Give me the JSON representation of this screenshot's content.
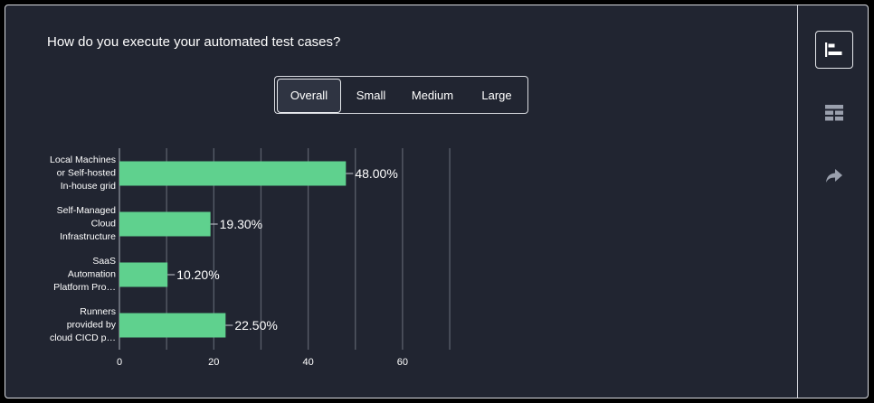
{
  "question": "How do you execute your automated test cases?",
  "filters": {
    "options": [
      "Overall",
      "Small",
      "Medium",
      "Large"
    ],
    "selected": "Overall"
  },
  "side_toolbar": {
    "buttons": [
      {
        "icon": "bar-chart-icon",
        "active": true
      },
      {
        "icon": "table-icon",
        "active": false
      },
      {
        "icon": "share-icon",
        "active": false
      }
    ]
  },
  "colors": {
    "bar": "#5fd18e",
    "panel_bg": "#212531",
    "grid": "#5a5f6b",
    "text": "#ffffff"
  },
  "chart_data": {
    "type": "bar",
    "orientation": "horizontal",
    "title": "How do you execute your automated test cases?",
    "categories": [
      [
        "Local Machines",
        "or Self-hosted",
        "In-house grid"
      ],
      [
        "Self-Managed",
        "Cloud",
        "Infrastructure"
      ],
      [
        "SaaS",
        "Automation",
        "Platform Pro…"
      ],
      [
        "Runners",
        "provided by",
        "cloud CICD p…"
      ]
    ],
    "values": [
      48.0,
      19.3,
      10.2,
      22.5
    ],
    "value_labels": [
      "48.00%",
      "19.30%",
      "10.20%",
      "22.50%"
    ],
    "xticks": [
      0,
      20,
      40,
      60
    ],
    "xlim": [
      0,
      70
    ],
    "grid": true,
    "xlabel": "",
    "ylabel": ""
  }
}
